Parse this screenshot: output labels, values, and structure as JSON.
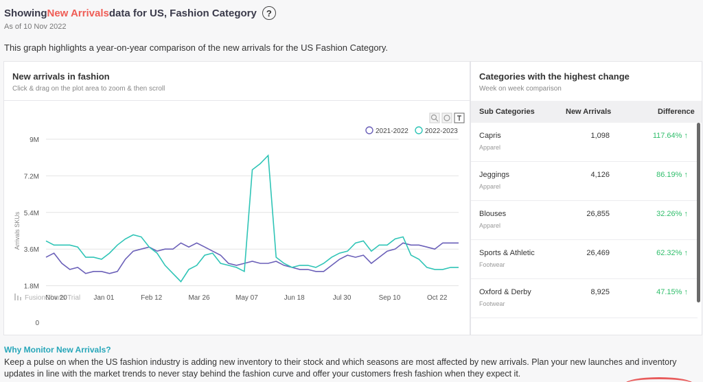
{
  "header": {
    "title_prefix": "Showing ",
    "title_highlight": "New Arrivals",
    "title_suffix": " data for US, Fashion Category",
    "help_glyph": "?",
    "as_of": "As of 10 Nov 2022",
    "description": "This graph highlights a year-on-year comparison of the new arrivals for the US Fashion Category."
  },
  "chart_panel": {
    "title": "New arrivals in fashion",
    "subtitle": "Click & drag on the plot area to zoom & then scroll",
    "watermark": "FusionCharts Trial"
  },
  "chart_data": {
    "type": "line",
    "ylabel": "Arrivals SKUs",
    "ylim": [
      0,
      9000000
    ],
    "yticks": [
      "0",
      "1.8M",
      "3.6M",
      "5.4M",
      "7.2M",
      "9M"
    ],
    "xtick_labels": [
      "Nov 20",
      "Jan 01",
      "Feb 12",
      "Mar 26",
      "May 07",
      "Jun 18",
      "Jul 30",
      "Sep 10",
      "Oct 22"
    ],
    "x_week_index": [
      0,
      6,
      12,
      18,
      24,
      30,
      36,
      42,
      48
    ],
    "n_weeks": 53,
    "legend_position": "top-right",
    "series": [
      {
        "name": "2021-2022",
        "color": "#6a5fb8",
        "values": [
          3.2,
          3.4,
          2.9,
          2.6,
          2.7,
          2.4,
          2.5,
          2.5,
          2.4,
          2.5,
          3.1,
          3.5,
          3.6,
          3.7,
          3.5,
          3.6,
          3.6,
          3.9,
          3.7,
          3.9,
          3.7,
          3.5,
          3.3,
          2.9,
          2.8,
          2.9,
          3.0,
          2.9,
          2.9,
          3.0,
          2.8,
          2.7,
          2.6,
          2.6,
          2.5,
          2.5,
          2.8,
          3.1,
          3.3,
          3.2,
          3.3,
          2.9,
          3.2,
          3.5,
          3.6,
          3.9,
          3.8,
          3.8,
          3.7,
          3.6,
          3.9,
          3.9,
          3.9
        ]
      },
      {
        "name": "2022-2023",
        "color": "#2ec4b6",
        "values": [
          4.0,
          3.8,
          3.8,
          3.8,
          3.7,
          3.2,
          3.2,
          3.1,
          3.4,
          3.8,
          4.1,
          4.3,
          4.2,
          3.7,
          3.4,
          2.8,
          2.4,
          2.0,
          2.6,
          2.8,
          3.3,
          3.4,
          2.9,
          2.8,
          2.7,
          2.5,
          7.5,
          7.8,
          8.2,
          3.2,
          2.9,
          2.7,
          2.8,
          2.8,
          2.7,
          2.9,
          3.2,
          3.4,
          3.5,
          3.9,
          4.0,
          3.5,
          3.8,
          3.8,
          4.1,
          4.2,
          3.3,
          3.1,
          2.7,
          2.6,
          2.6,
          2.7,
          2.7
        ]
      }
    ]
  },
  "categories_panel": {
    "title": "Categories with the highest change",
    "subtitle": "Week on week comparison",
    "columns": [
      "Sub Categories",
      "New Arrivals",
      "Difference"
    ],
    "rows": [
      {
        "name": "Capris",
        "group": "Apparel",
        "arrivals": "1,098",
        "difference": "117.64% ↑"
      },
      {
        "name": "Jeggings",
        "group": "Apparel",
        "arrivals": "4,126",
        "difference": "86.19% ↑"
      },
      {
        "name": "Blouses",
        "group": "Apparel",
        "arrivals": "26,855",
        "difference": "32.26% ↑"
      },
      {
        "name": "Sports & Athletic",
        "group": "Footwear",
        "arrivals": "26,469",
        "difference": "62.32% ↑"
      },
      {
        "name": "Oxford & Derby",
        "group": "Footwear",
        "arrivals": "8,925",
        "difference": "47.15% ↑"
      }
    ]
  },
  "footer": {
    "heading": "Why Monitor New Arrivals?",
    "text": "Keep a pulse on when the US fashion industry is adding new inventory to their stock and which seasons are most affected by new arrivals. Plan your new launches and inventory updates in line with the market trends to never stay behind the fashion curve and offer your customers fresh fashion when they expect it."
  },
  "icons": [
    "help-icon",
    "zoom-in-icon",
    "zoom-out-icon",
    "reset-icon",
    "up-arrow-icon"
  ]
}
